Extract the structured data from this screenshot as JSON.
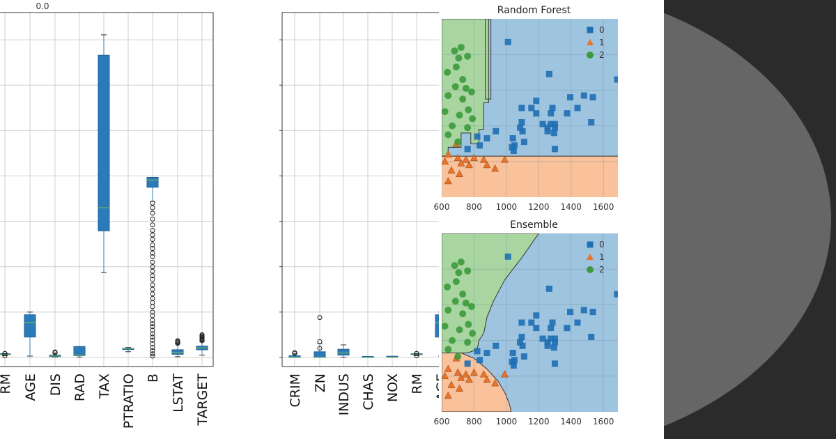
{
  "colors": {
    "box_fill": "#2b7bb9",
    "box_edge": "#1f5f99",
    "median": "#7bbf4a",
    "grid": "#cfcfcf",
    "region_0": "#9ec4df",
    "region_1": "#f9c29a",
    "region_2": "#a9d6a0",
    "marker_0": "#1f6fb4",
    "marker_1": "#e8732b",
    "marker_2": "#3c9a3c"
  },
  "chart_data": [
    {
      "type": "box",
      "name": "boxplot-left",
      "title": "",
      "top_label": "0.0",
      "categories": [
        "RM",
        "AGE",
        "DIS",
        "RAD",
        "TAX",
        "PTRATIO",
        "B",
        "LSTAT",
        "TARGET"
      ],
      "ylim": [
        -20,
        760
      ],
      "boxes": [
        {
          "q1": 5.9,
          "median": 6.2,
          "q3": 6.6,
          "whisker_low": 4.0,
          "whisker_high": 8.7,
          "outliers": [
            3.6,
            8.8,
            9.0
          ]
        },
        {
          "q1": 45,
          "median": 77,
          "q3": 94,
          "whisker_low": 3,
          "whisker_high": 100,
          "outliers": []
        },
        {
          "q1": 2.1,
          "median": 3.2,
          "q3": 5.2,
          "whisker_low": 1.1,
          "whisker_high": 9.8,
          "outliers": [
            10.5,
            11.0,
            12.1
          ]
        },
        {
          "q1": 4,
          "median": 5,
          "q3": 24,
          "whisker_low": 1,
          "whisker_high": 24,
          "outliers": []
        },
        {
          "q1": 279,
          "median": 330,
          "q3": 666,
          "whisker_low": 187,
          "whisker_high": 711,
          "outliers": []
        },
        {
          "q1": 17.4,
          "median": 19.0,
          "q3": 20.2,
          "whisker_low": 12.6,
          "whisker_high": 22.0,
          "outliers": []
        },
        {
          "q1": 375,
          "median": 391,
          "q3": 396.9,
          "whisker_low": 344,
          "whisker_high": 396.9,
          "outliers": [
            340,
            330,
            318,
            305,
            292,
            280,
            270,
            260,
            248,
            240,
            230,
            222,
            210,
            200,
            190,
            180,
            172,
            160,
            150,
            140,
            130,
            121,
            112,
            100,
            92,
            82,
            74,
            68,
            60,
            52,
            45,
            38,
            30,
            22,
            15,
            8,
            3
          ]
        },
        {
          "q1": 7,
          "median": 11,
          "q3": 17,
          "whisker_low": 1.7,
          "whisker_high": 30,
          "outliers": [
            31.0,
            33.0,
            35.0,
            37.0
          ]
        },
        {
          "q1": 17,
          "median": 21,
          "q3": 25,
          "whisker_low": 5,
          "whisker_high": 36,
          "outliers": [
            37,
            38,
            40,
            42,
            44,
            46,
            48,
            50
          ]
        }
      ]
    },
    {
      "type": "box",
      "name": "boxplot-right",
      "title": "",
      "categories": [
        "CRIM",
        "ZN",
        "INDUS",
        "CHAS",
        "NOX",
        "RM",
        "AGE"
      ],
      "ylim": [
        -20,
        760
      ],
      "boxes": [
        {
          "q1": 0.08,
          "median": 0.26,
          "q3": 3.7,
          "whisker_low": 0.006,
          "whisker_high": 8.9,
          "outliers": [
            9.2,
            10.5
          ]
        },
        {
          "q1": 0,
          "median": 0,
          "q3": 12.5,
          "whisker_low": 0,
          "whisker_high": 31,
          "outliers": [
            20,
            35,
            88
          ]
        },
        {
          "q1": 5.2,
          "median": 9.7,
          "q3": 18.1,
          "whisker_low": 0.46,
          "whisker_high": 27.7,
          "outliers": []
        },
        {
          "q1": 0,
          "median": 0,
          "q3": 0,
          "whisker_low": 0,
          "whisker_high": 0,
          "outliers": []
        },
        {
          "q1": 0.45,
          "median": 0.54,
          "q3": 0.62,
          "whisker_low": 0.39,
          "whisker_high": 0.87,
          "outliers": []
        },
        {
          "q1": 5.9,
          "median": 6.2,
          "q3": 6.6,
          "whisker_low": 4.0,
          "whisker_high": 8.7,
          "outliers": [
            3.6,
            8.8,
            9.0
          ]
        },
        {
          "q1": 45,
          "median": 77,
          "q3": 94,
          "whisker_low": 3,
          "whisker_high": 100,
          "outliers": []
        }
      ]
    },
    {
      "type": "scatter",
      "name": "random-forest",
      "title": "Random Forest",
      "x_ticks": [
        "600",
        "800",
        "1000",
        "1200",
        "1400",
        "1600"
      ],
      "xlim": [
        600,
        1690
      ],
      "ylim": [
        0,
        1
      ],
      "legend": [
        "0",
        "1",
        "2"
      ],
      "points": [
        {
          "x": 1010,
          "y": 0.87,
          "c": 0
        },
        {
          "x": 1265,
          "y": 0.69,
          "c": 0
        },
        {
          "x": 1685,
          "y": 0.66,
          "c": 0
        },
        {
          "x": 1480,
          "y": 0.57,
          "c": 0
        },
        {
          "x": 1395,
          "y": 0.56,
          "c": 0
        },
        {
          "x": 1535,
          "y": 0.56,
          "c": 0
        },
        {
          "x": 1185,
          "y": 0.54,
          "c": 0
        },
        {
          "x": 1095,
          "y": 0.5,
          "c": 0
        },
        {
          "x": 1155,
          "y": 0.5,
          "c": 0
        },
        {
          "x": 1285,
          "y": 0.5,
          "c": 0
        },
        {
          "x": 1440,
          "y": 0.5,
          "c": 0
        },
        {
          "x": 1275,
          "y": 0.47,
          "c": 0
        },
        {
          "x": 1375,
          "y": 0.47,
          "c": 0
        },
        {
          "x": 1185,
          "y": 0.47,
          "c": 0
        },
        {
          "x": 1525,
          "y": 0.42,
          "c": 0
        },
        {
          "x": 1095,
          "y": 0.42,
          "c": 0
        },
        {
          "x": 1225,
          "y": 0.41,
          "c": 0
        },
        {
          "x": 1275,
          "y": 0.41,
          "c": 0
        },
        {
          "x": 1300,
          "y": 0.41,
          "c": 0
        },
        {
          "x": 1085,
          "y": 0.39,
          "c": 0
        },
        {
          "x": 1255,
          "y": 0.39,
          "c": 0
        },
        {
          "x": 1300,
          "y": 0.39,
          "c": 0
        },
        {
          "x": 935,
          "y": 0.37,
          "c": 0
        },
        {
          "x": 1100,
          "y": 0.37,
          "c": 0
        },
        {
          "x": 1255,
          "y": 0.37,
          "c": 0
        },
        {
          "x": 1295,
          "y": 0.36,
          "c": 0
        },
        {
          "x": 820,
          "y": 0.34,
          "c": 0
        },
        {
          "x": 880,
          "y": 0.33,
          "c": 0
        },
        {
          "x": 1040,
          "y": 0.33,
          "c": 0
        },
        {
          "x": 1110,
          "y": 0.31,
          "c": 0
        },
        {
          "x": 835,
          "y": 0.29,
          "c": 0
        },
        {
          "x": 1050,
          "y": 0.29,
          "c": 0
        },
        {
          "x": 1035,
          "y": 0.28,
          "c": 0
        },
        {
          "x": 1300,
          "y": 0.27,
          "c": 0
        },
        {
          "x": 1045,
          "y": 0.26,
          "c": 0
        },
        {
          "x": 760,
          "y": 0.27,
          "c": 0
        },
        {
          "x": 640,
          "y": 0.24,
          "c": 1
        },
        {
          "x": 700,
          "y": 0.22,
          "c": 1
        },
        {
          "x": 750,
          "y": 0.21,
          "c": 1
        },
        {
          "x": 800,
          "y": 0.22,
          "c": 1
        },
        {
          "x": 860,
          "y": 0.21,
          "c": 1
        },
        {
          "x": 990,
          "y": 0.21,
          "c": 1
        },
        {
          "x": 880,
          "y": 0.18,
          "c": 1
        },
        {
          "x": 930,
          "y": 0.16,
          "c": 1
        },
        {
          "x": 720,
          "y": 0.19,
          "c": 1
        },
        {
          "x": 770,
          "y": 0.18,
          "c": 1
        },
        {
          "x": 660,
          "y": 0.15,
          "c": 1
        },
        {
          "x": 710,
          "y": 0.13,
          "c": 1
        },
        {
          "x": 640,
          "y": 0.09,
          "c": 1
        },
        {
          "x": 690,
          "y": 0.3,
          "c": 1
        },
        {
          "x": 620,
          "y": 0.2,
          "c": 1
        },
        {
          "x": 680,
          "y": 0.82,
          "c": 2
        },
        {
          "x": 705,
          "y": 0.78,
          "c": 2
        },
        {
          "x": 720,
          "y": 0.84,
          "c": 2
        },
        {
          "x": 690,
          "y": 0.73,
          "c": 2
        },
        {
          "x": 760,
          "y": 0.79,
          "c": 2
        },
        {
          "x": 635,
          "y": 0.7,
          "c": 2
        },
        {
          "x": 730,
          "y": 0.66,
          "c": 2
        },
        {
          "x": 685,
          "y": 0.62,
          "c": 2
        },
        {
          "x": 750,
          "y": 0.61,
          "c": 2
        },
        {
          "x": 785,
          "y": 0.59,
          "c": 2
        },
        {
          "x": 730,
          "y": 0.55,
          "c": 2
        },
        {
          "x": 640,
          "y": 0.57,
          "c": 2
        },
        {
          "x": 765,
          "y": 0.49,
          "c": 2
        },
        {
          "x": 710,
          "y": 0.46,
          "c": 2
        },
        {
          "x": 790,
          "y": 0.44,
          "c": 2
        },
        {
          "x": 665,
          "y": 0.4,
          "c": 2
        },
        {
          "x": 760,
          "y": 0.39,
          "c": 2
        },
        {
          "x": 640,
          "y": 0.35,
          "c": 2
        },
        {
          "x": 700,
          "y": 0.31,
          "c": 2
        },
        {
          "x": 620,
          "y": 0.48,
          "c": 2
        }
      ]
    },
    {
      "type": "scatter",
      "name": "ensemble",
      "title": "Ensemble",
      "x_ticks": [
        "600",
        "800",
        "1000",
        "1200",
        "1400",
        "1600"
      ],
      "xlim": [
        600,
        1690
      ],
      "ylim": [
        0,
        1
      ],
      "legend": [
        "0",
        "1",
        "2"
      ]
    }
  ]
}
